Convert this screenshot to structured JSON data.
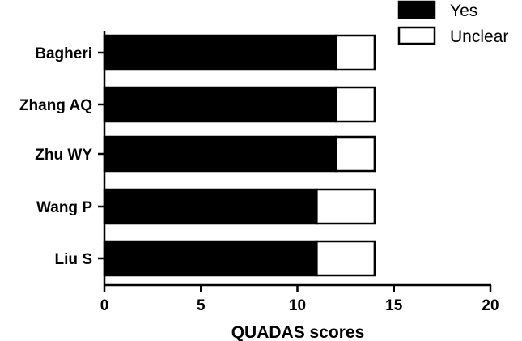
{
  "chart_data": {
    "type": "bar",
    "orientation": "horizontal",
    "stacked": true,
    "categories": [
      "Bagheri",
      "Zhang AQ",
      "Zhu WY",
      "Wang P",
      "Liu S"
    ],
    "series": [
      {
        "name": "Yes",
        "values": [
          12,
          12,
          12,
          11,
          11
        ],
        "color": "#000000"
      },
      {
        "name": "Unclear",
        "values": [
          2,
          2,
          2,
          3,
          3
        ],
        "color": "#ffffff"
      }
    ],
    "xlabel": "QUADAS scores",
    "xlim": [
      0,
      20
    ],
    "xticks": [
      "0",
      "5",
      "10",
      "15",
      "20"
    ],
    "grid": false,
    "legend_position": "top-right"
  }
}
